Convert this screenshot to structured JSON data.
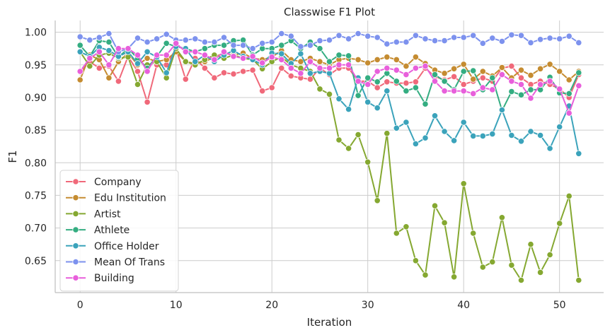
{
  "chart_data": {
    "type": "line",
    "title": "Classwise F1 Plot",
    "xlabel": "Iteration",
    "ylabel": "F1",
    "xlim": [
      -2.6,
      54.6
    ],
    "ylim": [
      0.601,
      1.018
    ],
    "xticks": [
      0,
      10,
      20,
      30,
      40,
      50
    ],
    "yticks": [
      0.65,
      0.7,
      0.75,
      0.8,
      0.85,
      0.9,
      0.95,
      1.0
    ],
    "grid": true,
    "legend_position": "bottom-left",
    "series": [
      {
        "name": "Company",
        "color": "#f0697a",
        "values": [
          0.939,
          0.955,
          0.945,
          0.948,
          0.925,
          0.963,
          0.94,
          0.893,
          0.95,
          0.95,
          0.975,
          0.928,
          0.96,
          0.945,
          0.93,
          0.938,
          0.936,
          0.94,
          0.942,
          0.91,
          0.915,
          0.945,
          0.933,
          0.93,
          0.928,
          0.945,
          0.935,
          0.945,
          0.945,
          0.925,
          0.925,
          0.915,
          0.924,
          0.922,
          0.922,
          0.924,
          0.945,
          0.932,
          0.927,
          0.932,
          0.92,
          0.925,
          0.93,
          0.925,
          0.945,
          0.948,
          0.93,
          0.92,
          0.925,
          0.92,
          0.913,
          0.9,
          0.935
        ]
      },
      {
        "name": "Edu Institution",
        "color": "#c58c31",
        "values": [
          0.927,
          0.965,
          0.958,
          0.93,
          0.955,
          0.968,
          0.95,
          0.96,
          0.955,
          0.958,
          0.97,
          0.955,
          0.952,
          0.955,
          0.962,
          0.968,
          0.965,
          0.968,
          0.96,
          0.958,
          0.962,
          0.972,
          0.958,
          0.955,
          0.96,
          0.955,
          0.95,
          0.958,
          0.96,
          0.958,
          0.953,
          0.958,
          0.962,
          0.958,
          0.948,
          0.962,
          0.952,
          0.942,
          0.937,
          0.944,
          0.951,
          0.928,
          0.94,
          0.933,
          0.946,
          0.93,
          0.942,
          0.934,
          0.944,
          0.951,
          0.94,
          0.927,
          0.94
        ]
      },
      {
        "name": "Artist",
        "color": "#85a831",
        "values": [
          0.97,
          0.948,
          0.965,
          0.968,
          0.96,
          0.962,
          0.92,
          0.95,
          0.955,
          0.93,
          0.975,
          0.955,
          0.95,
          0.958,
          0.965,
          0.96,
          0.965,
          0.96,
          0.958,
          0.944,
          0.955,
          0.962,
          0.95,
          0.945,
          0.94,
          0.913,
          0.905,
          0.835,
          0.822,
          0.843,
          0.801,
          0.742,
          0.845,
          0.692,
          0.702,
          0.65,
          0.628,
          0.734,
          0.708,
          0.625,
          0.768,
          0.692,
          0.64,
          0.648,
          0.716,
          0.643,
          0.62,
          0.675,
          0.632,
          0.659,
          0.707,
          0.749,
          0.62
        ]
      },
      {
        "name": "Athlete",
        "color": "#34ad81",
        "values": [
          0.98,
          0.963,
          0.987,
          0.985,
          0.962,
          0.975,
          0.96,
          0.945,
          0.963,
          0.983,
          0.978,
          0.975,
          0.97,
          0.975,
          0.98,
          0.98,
          0.987,
          0.988,
          0.965,
          0.975,
          0.975,
          0.98,
          0.987,
          0.975,
          0.985,
          0.975,
          0.955,
          0.965,
          0.964,
          0.903,
          0.93,
          0.924,
          0.937,
          0.925,
          0.91,
          0.915,
          0.89,
          0.935,
          0.925,
          0.912,
          0.94,
          0.941,
          0.912,
          0.93,
          0.88,
          0.909,
          0.904,
          0.912,
          0.912,
          0.931,
          0.907,
          0.906,
          0.938
        ]
      },
      {
        "name": "Office Holder",
        "color": "#3ba3bb",
        "values": [
          0.97,
          0.963,
          0.977,
          0.972,
          0.963,
          0.97,
          0.952,
          0.97,
          0.962,
          0.938,
          0.978,
          0.975,
          0.955,
          0.965,
          0.955,
          0.965,
          0.972,
          0.963,
          0.958,
          0.95,
          0.968,
          0.967,
          0.952,
          0.967,
          0.937,
          0.94,
          0.937,
          0.898,
          0.882,
          0.93,
          0.893,
          0.884,
          0.91,
          0.853,
          0.862,
          0.829,
          0.838,
          0.872,
          0.848,
          0.834,
          0.862,
          0.841,
          0.841,
          0.844,
          0.881,
          0.842,
          0.833,
          0.848,
          0.842,
          0.822,
          0.855,
          0.887,
          0.814
        ]
      },
      {
        "name": "Mean Of Trans",
        "color": "#7d92ee",
        "values": [
          0.993,
          0.988,
          0.992,
          0.998,
          0.97,
          0.975,
          0.991,
          0.985,
          0.99,
          0.997,
          0.988,
          0.988,
          0.99,
          0.985,
          0.985,
          0.992,
          0.98,
          0.98,
          0.975,
          0.983,
          0.985,
          0.998,
          0.994,
          0.978,
          0.98,
          0.987,
          0.988,
          0.995,
          0.99,
          0.998,
          0.994,
          0.992,
          0.982,
          0.985,
          0.985,
          0.995,
          0.99,
          0.987,
          0.987,
          0.992,
          0.992,
          0.995,
          0.983,
          0.991,
          0.986,
          0.996,
          0.995,
          0.984,
          0.989,
          0.991,
          0.99,
          0.994,
          0.984
        ]
      },
      {
        "name": "Building",
        "color": "#e85fdb",
        "values": [
          0.94,
          0.96,
          0.97,
          0.95,
          0.975,
          0.975,
          0.965,
          0.94,
          0.965,
          0.965,
          0.983,
          0.97,
          0.97,
          0.965,
          0.958,
          0.97,
          0.963,
          0.96,
          0.963,
          0.953,
          0.962,
          0.958,
          0.945,
          0.937,
          0.955,
          0.945,
          0.945,
          0.95,
          0.95,
          0.925,
          0.92,
          0.94,
          0.945,
          0.942,
          0.935,
          0.945,
          0.948,
          0.925,
          0.91,
          0.91,
          0.91,
          0.906,
          0.915,
          0.912,
          0.935,
          0.925,
          0.92,
          0.899,
          0.92,
          0.925,
          0.913,
          0.876,
          0.918
        ]
      }
    ]
  }
}
